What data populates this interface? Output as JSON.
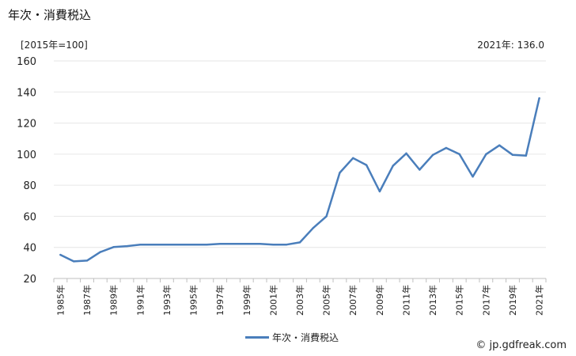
{
  "page_title": "年次・消費税込",
  "unit_label": "[2015年=100]",
  "annotation": "2021年: 136.0",
  "credit": "© jp.gdfreak.com",
  "colors": {
    "series": "#4a7ebb",
    "grid": "#e6e6e6"
  },
  "chart_data": {
    "type": "line",
    "title": "",
    "xlabel": "",
    "ylabel": "[2015年=100]",
    "ylim": [
      20,
      160
    ],
    "yticks": [
      20,
      40,
      60,
      80,
      100,
      120,
      140,
      160
    ],
    "grid": true,
    "legend_position": "bottom",
    "x": [
      "1985年",
      "1986年",
      "1987年",
      "1988年",
      "1989年",
      "1990年",
      "1991年",
      "1992年",
      "1993年",
      "1994年",
      "1995年",
      "1996年",
      "1997年",
      "1998年",
      "1999年",
      "2000年",
      "2001年",
      "2002年",
      "2003年",
      "2004年",
      "2005年",
      "2006年",
      "2007年",
      "2008年",
      "2009年",
      "2010年",
      "2011年",
      "2012年",
      "2013年",
      "2014年",
      "2015年",
      "2016年",
      "2017年",
      "2018年",
      "2019年",
      "2020年",
      "2021年"
    ],
    "xtick_labels": [
      "1985年",
      "1987年",
      "1989年",
      "1991年",
      "1993年",
      "1995年",
      "1997年",
      "1999年",
      "2001年",
      "2003年",
      "2005年",
      "2007年",
      "2009年",
      "2011年",
      "2013年",
      "2015年",
      "2017年",
      "2019年",
      "2021年"
    ],
    "series": [
      {
        "name": "年次・消費税込",
        "values": [
          35.2,
          31.0,
          31.5,
          37.0,
          40.2,
          40.8,
          41.8,
          41.8,
          41.8,
          41.8,
          41.8,
          41.8,
          42.3,
          42.3,
          42.3,
          42.3,
          41.8,
          41.8,
          43.2,
          52.5,
          60.0,
          88.0,
          97.5,
          93.0,
          76.0,
          92.5,
          100.5,
          90.0,
          99.5,
          104.0,
          100.0,
          85.5,
          100.0,
          105.7,
          99.5,
          99.0,
          136.0
        ]
      }
    ]
  }
}
